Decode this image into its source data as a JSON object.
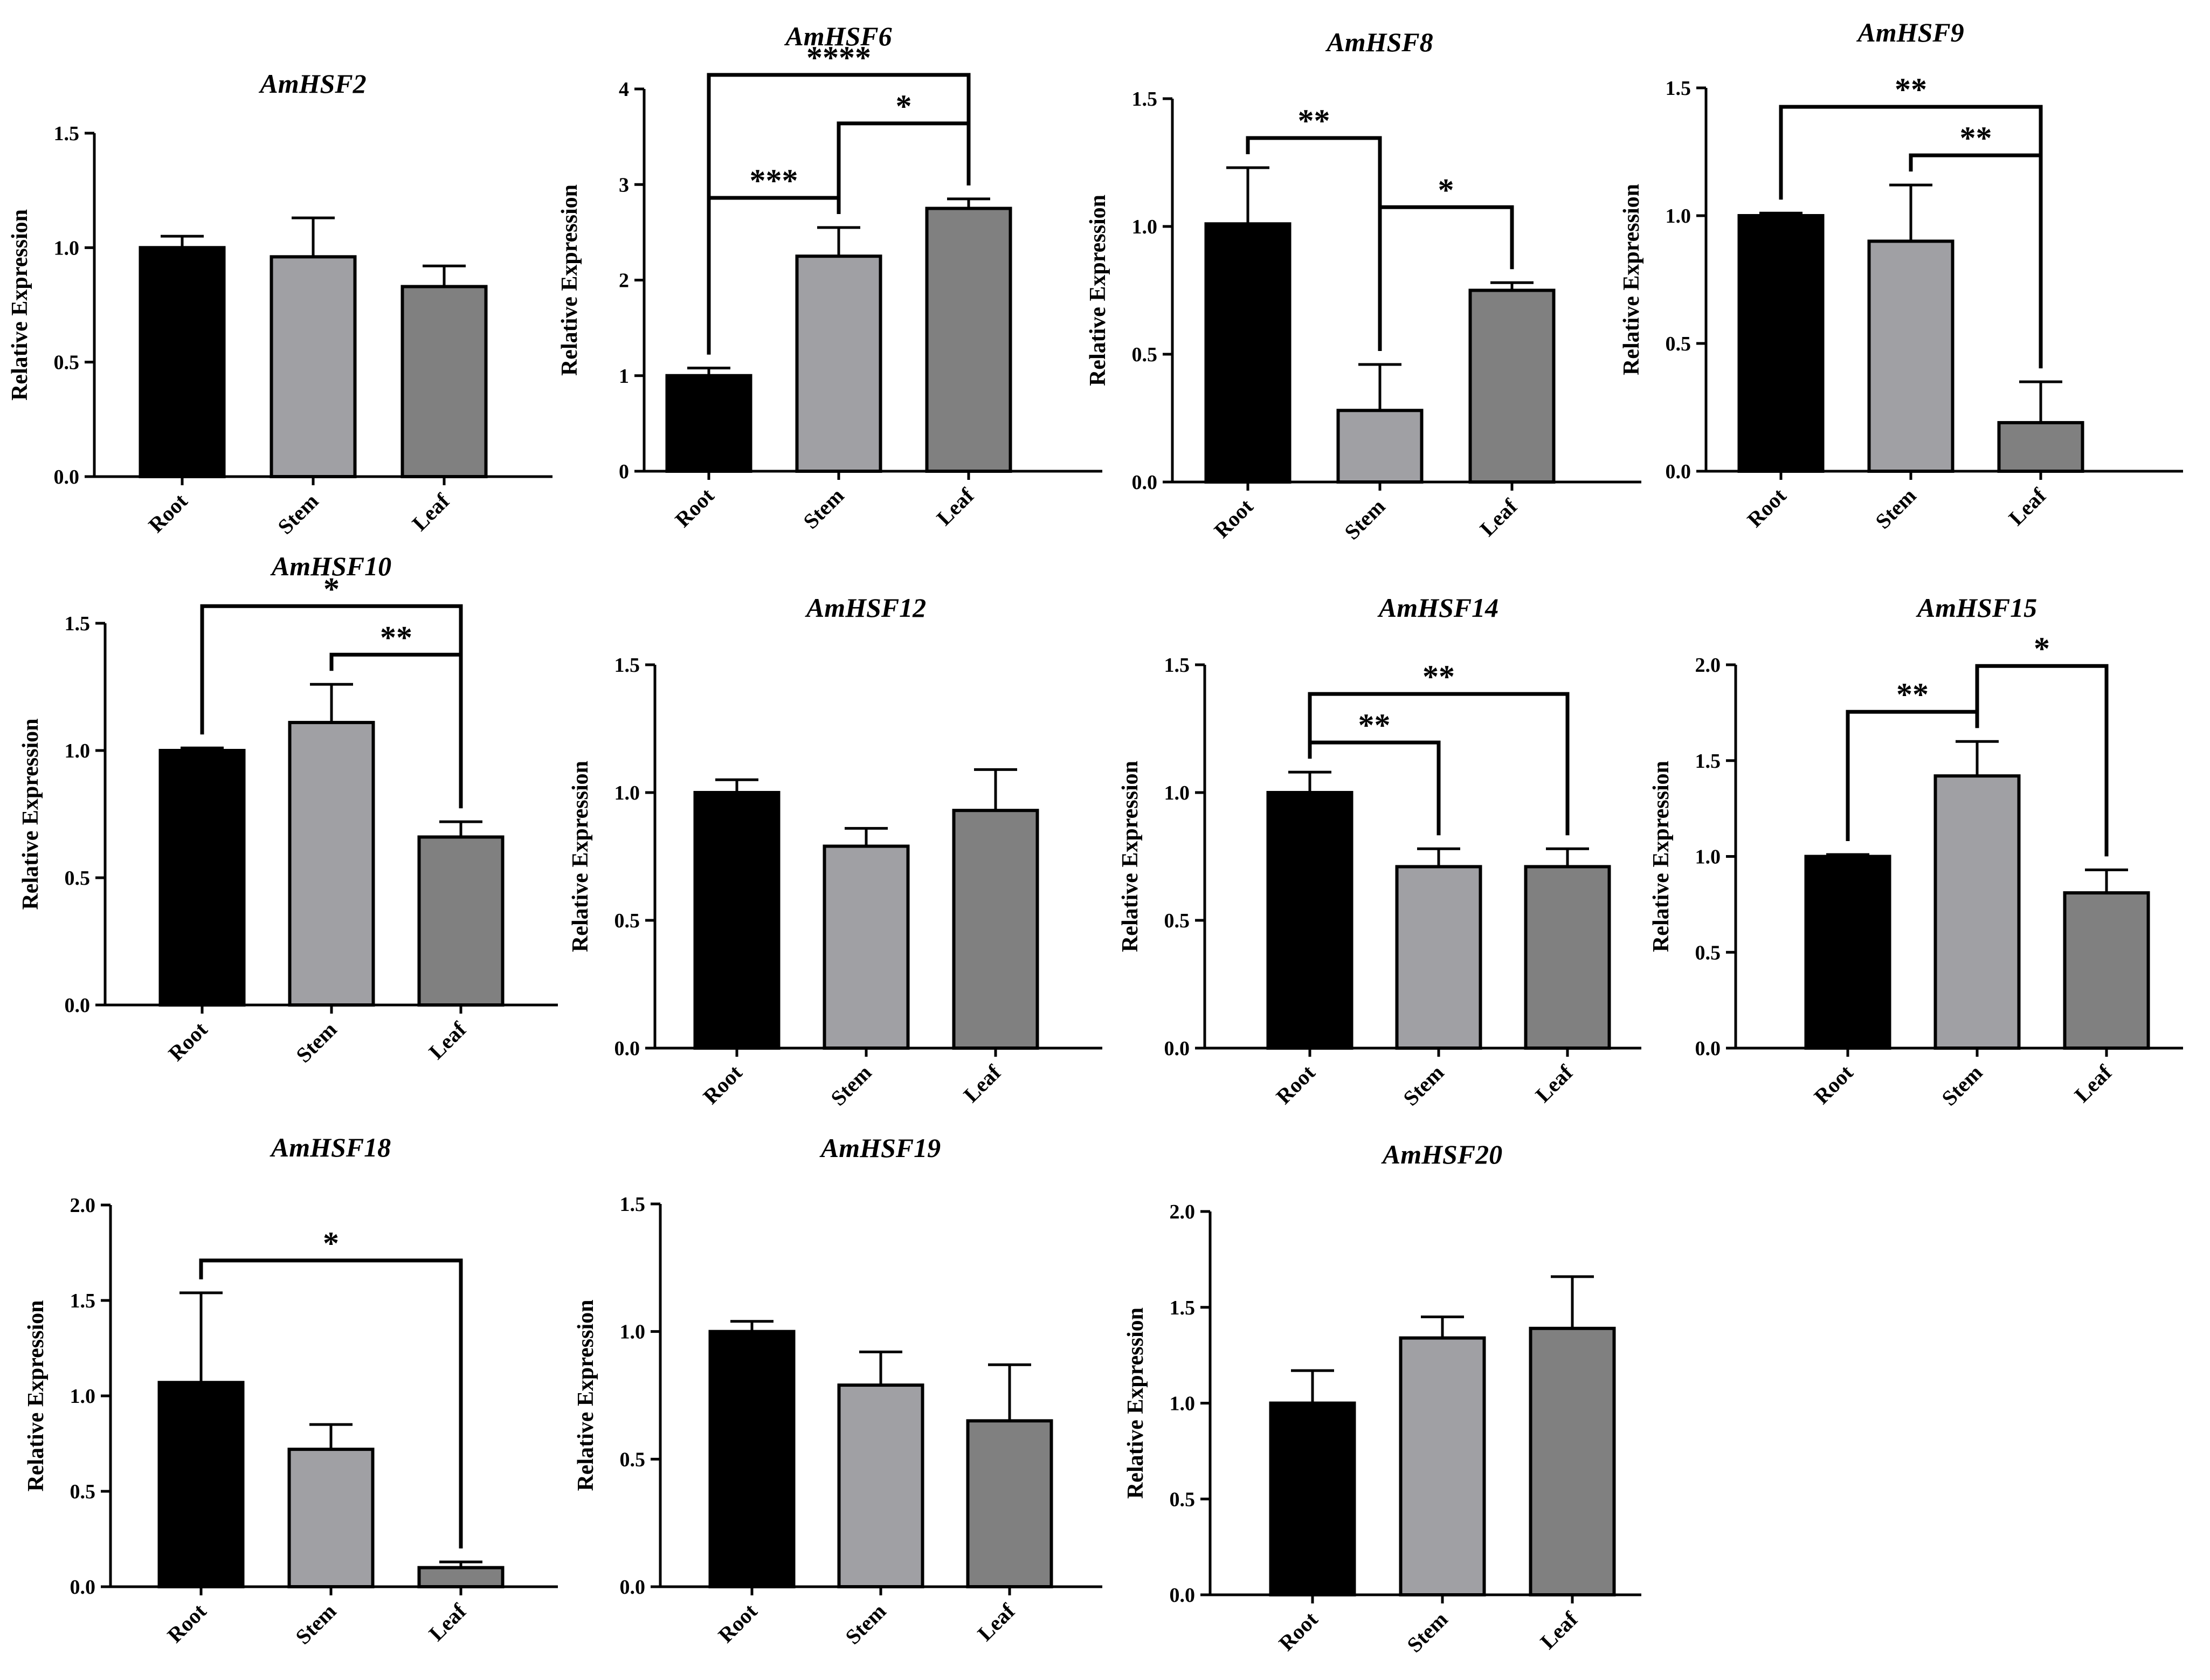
{
  "colors": {
    "root": "#000000",
    "stem": "#a0a0a4",
    "leaf": "#808080",
    "axis": "#000000"
  },
  "chart_data": [
    {
      "type": "bar",
      "title": "AmHSF2",
      "ylabel": "Relative Expression",
      "xlabel": "",
      "categories": [
        "Root",
        "Stem",
        "Leaf"
      ],
      "values": [
        1.0,
        0.96,
        0.83
      ],
      "errors": [
        0.05,
        0.17,
        0.09
      ],
      "ylim": [
        0,
        1.5
      ],
      "yticks": [
        "0.0",
        "0.5",
        "1.0",
        "1.5"
      ],
      "significance": []
    },
    {
      "type": "bar",
      "title": "AmHSF6",
      "ylabel": "Relative Expression",
      "xlabel": "",
      "categories": [
        "Root",
        "Stem",
        "Leaf"
      ],
      "values": [
        1.0,
        2.25,
        2.75
      ],
      "errors": [
        0.08,
        0.3,
        0.1
      ],
      "ylim": [
        0,
        4
      ],
      "yticks": [
        "0",
        "1",
        "2",
        "3",
        "4"
      ],
      "significance": [
        {
          "from": 0,
          "to": 1,
          "label": "***"
        },
        {
          "from": 1,
          "to": 2,
          "label": "*"
        },
        {
          "from": 0,
          "to": 2,
          "label": "****"
        }
      ]
    },
    {
      "type": "bar",
      "title": "AmHSF8",
      "ylabel": "Relative Expression",
      "xlabel": "",
      "categories": [
        "Root",
        "Stem",
        "Leaf"
      ],
      "values": [
        1.01,
        0.28,
        0.75
      ],
      "errors": [
        0.22,
        0.18,
        0.03
      ],
      "ylim": [
        0,
        1.5
      ],
      "yticks": [
        "0.0",
        "0.5",
        "1.0",
        "1.5"
      ],
      "significance": [
        {
          "from": 0,
          "to": 1,
          "label": "**"
        },
        {
          "from": 1,
          "to": 2,
          "label": "*"
        }
      ]
    },
    {
      "type": "bar",
      "title": "AmHSF9",
      "ylabel": "Relative Expression",
      "xlabel": "",
      "categories": [
        "Root",
        "Stem",
        "Leaf"
      ],
      "values": [
        1.0,
        0.9,
        0.19
      ],
      "errors": [
        0.01,
        0.22,
        0.16
      ],
      "ylim": [
        0,
        1.5
      ],
      "yticks": [
        "0.0",
        "0.5",
        "1.0",
        "1.5"
      ],
      "significance": [
        {
          "from": 1,
          "to": 2,
          "label": "**"
        },
        {
          "from": 0,
          "to": 2,
          "label": "**"
        }
      ]
    },
    {
      "type": "bar",
      "title": "AmHSF10",
      "ylabel": "Relative Expression",
      "xlabel": "",
      "categories": [
        "Root",
        "Stem",
        "Leaf"
      ],
      "values": [
        1.0,
        1.11,
        0.66
      ],
      "errors": [
        0.01,
        0.15,
        0.06
      ],
      "ylim": [
        0,
        1.5
      ],
      "yticks": [
        "0.0",
        "0.5",
        "1.0",
        "1.5"
      ],
      "significance": [
        {
          "from": 1,
          "to": 2,
          "label": "**"
        },
        {
          "from": 0,
          "to": 2,
          "label": "*"
        }
      ]
    },
    {
      "type": "bar",
      "title": "AmHSF12",
      "ylabel": "Relative Expression",
      "xlabel": "",
      "categories": [
        "Root",
        "Stem",
        "Leaf"
      ],
      "values": [
        1.0,
        0.79,
        0.93
      ],
      "errors": [
        0.05,
        0.07,
        0.16
      ],
      "ylim": [
        0,
        1.5
      ],
      "yticks": [
        "0.0",
        "0.5",
        "1.0",
        "1.5"
      ],
      "significance": []
    },
    {
      "type": "bar",
      "title": "AmHSF14",
      "ylabel": "Relative Expression",
      "xlabel": "",
      "categories": [
        "Root",
        "Stem",
        "Leaf"
      ],
      "values": [
        1.0,
        0.71,
        0.71
      ],
      "errors": [
        0.08,
        0.07,
        0.07
      ],
      "ylim": [
        0,
        1.5
      ],
      "yticks": [
        "0.0",
        "0.5",
        "1.0",
        "1.5"
      ],
      "significance": [
        {
          "from": 0,
          "to": 1,
          "label": "**"
        },
        {
          "from": 0,
          "to": 2,
          "label": "**"
        }
      ]
    },
    {
      "type": "bar",
      "title": "AmHSF15",
      "ylabel": "Relative Expression",
      "xlabel": "",
      "categories": [
        "Root",
        "Stem",
        "Leaf"
      ],
      "values": [
        1.0,
        1.42,
        0.81
      ],
      "errors": [
        0.01,
        0.18,
        0.12
      ],
      "ylim": [
        0,
        2.0
      ],
      "yticks": [
        "0.0",
        "0.5",
        "1.0",
        "1.5",
        "2.0"
      ],
      "significance": [
        {
          "from": 0,
          "to": 1,
          "label": "**"
        },
        {
          "from": 1,
          "to": 2,
          "label": "*"
        }
      ]
    },
    {
      "type": "bar",
      "title": "AmHSF18",
      "ylabel": "Relative Expression",
      "xlabel": "",
      "categories": [
        "Root",
        "Stem",
        "Leaf"
      ],
      "values": [
        1.07,
        0.72,
        0.1
      ],
      "errors": [
        0.47,
        0.13,
        0.03
      ],
      "ylim": [
        0,
        2.0
      ],
      "yticks": [
        "0.0",
        "0.5",
        "1.0",
        "1.5",
        "2.0"
      ],
      "significance": [
        {
          "from": 0,
          "to": 2,
          "label": "*"
        }
      ]
    },
    {
      "type": "bar",
      "title": "AmHSF19",
      "ylabel": "Relative Expression",
      "xlabel": "",
      "categories": [
        "Root",
        "Stem",
        "Leaf"
      ],
      "values": [
        1.0,
        0.79,
        0.65
      ],
      "errors": [
        0.04,
        0.13,
        0.22
      ],
      "ylim": [
        0,
        1.5
      ],
      "yticks": [
        "0.0",
        "0.5",
        "1.0",
        "1.5"
      ],
      "significance": []
    },
    {
      "type": "bar",
      "title": "AmHSF20",
      "ylabel": "Relative Expression",
      "xlabel": "",
      "categories": [
        "Root",
        "Stem",
        "Leaf"
      ],
      "values": [
        1.0,
        1.34,
        1.39
      ],
      "errors": [
        0.17,
        0.11,
        0.27
      ],
      "ylim": [
        0,
        2.0
      ],
      "yticks": [
        "0.0",
        "0.5",
        "1.0",
        "1.5",
        "2.0"
      ],
      "significance": []
    }
  ]
}
